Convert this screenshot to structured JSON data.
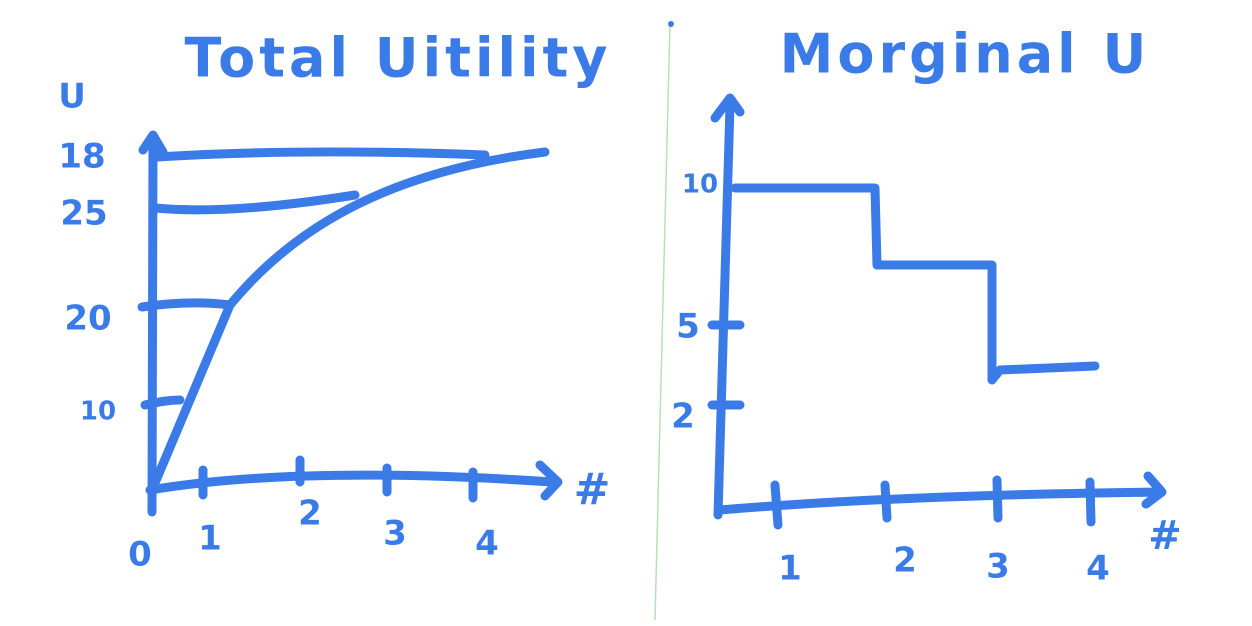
{
  "left": {
    "title": "Total Uitility",
    "y_label": "U",
    "y_ticks": [
      "18",
      "25",
      "20",
      "10"
    ],
    "origin": "0",
    "x_ticks": [
      "1",
      "2",
      "3",
      "4"
    ],
    "x_label": "#"
  },
  "right": {
    "title": "Morginal U",
    "y_ticks": [
      "10",
      "5",
      "2"
    ],
    "x_ticks": [
      "1",
      "2",
      "3",
      "4"
    ],
    "x_label": "#"
  }
}
